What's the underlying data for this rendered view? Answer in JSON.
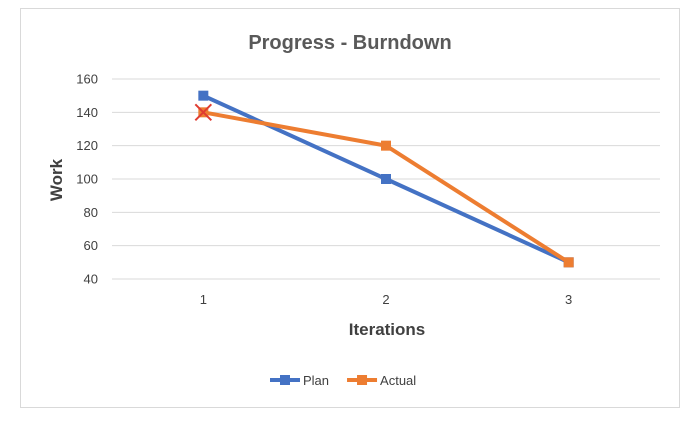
{
  "chart_data": {
    "type": "line",
    "title": "Progress - Burndown",
    "xlabel": "Iterations",
    "ylabel": "Work",
    "categories": [
      "1",
      "2",
      "3"
    ],
    "ylim": [
      40,
      160
    ],
    "yticks": [
      "40",
      "60",
      "80",
      "100",
      "120",
      "140",
      "160"
    ],
    "grid": true,
    "legend_position": "bottom",
    "series": [
      {
        "name": "Plan",
        "values": [
          150,
          100,
          50
        ],
        "color": "#4472c4",
        "marker": "square"
      },
      {
        "name": "Actual",
        "values": [
          140,
          120,
          50
        ],
        "color": "#ed7d31",
        "marker": "square"
      }
    ],
    "annotations": [
      {
        "type": "x-mark",
        "category": "1",
        "value": 140,
        "color": "#e03c31"
      }
    ]
  }
}
